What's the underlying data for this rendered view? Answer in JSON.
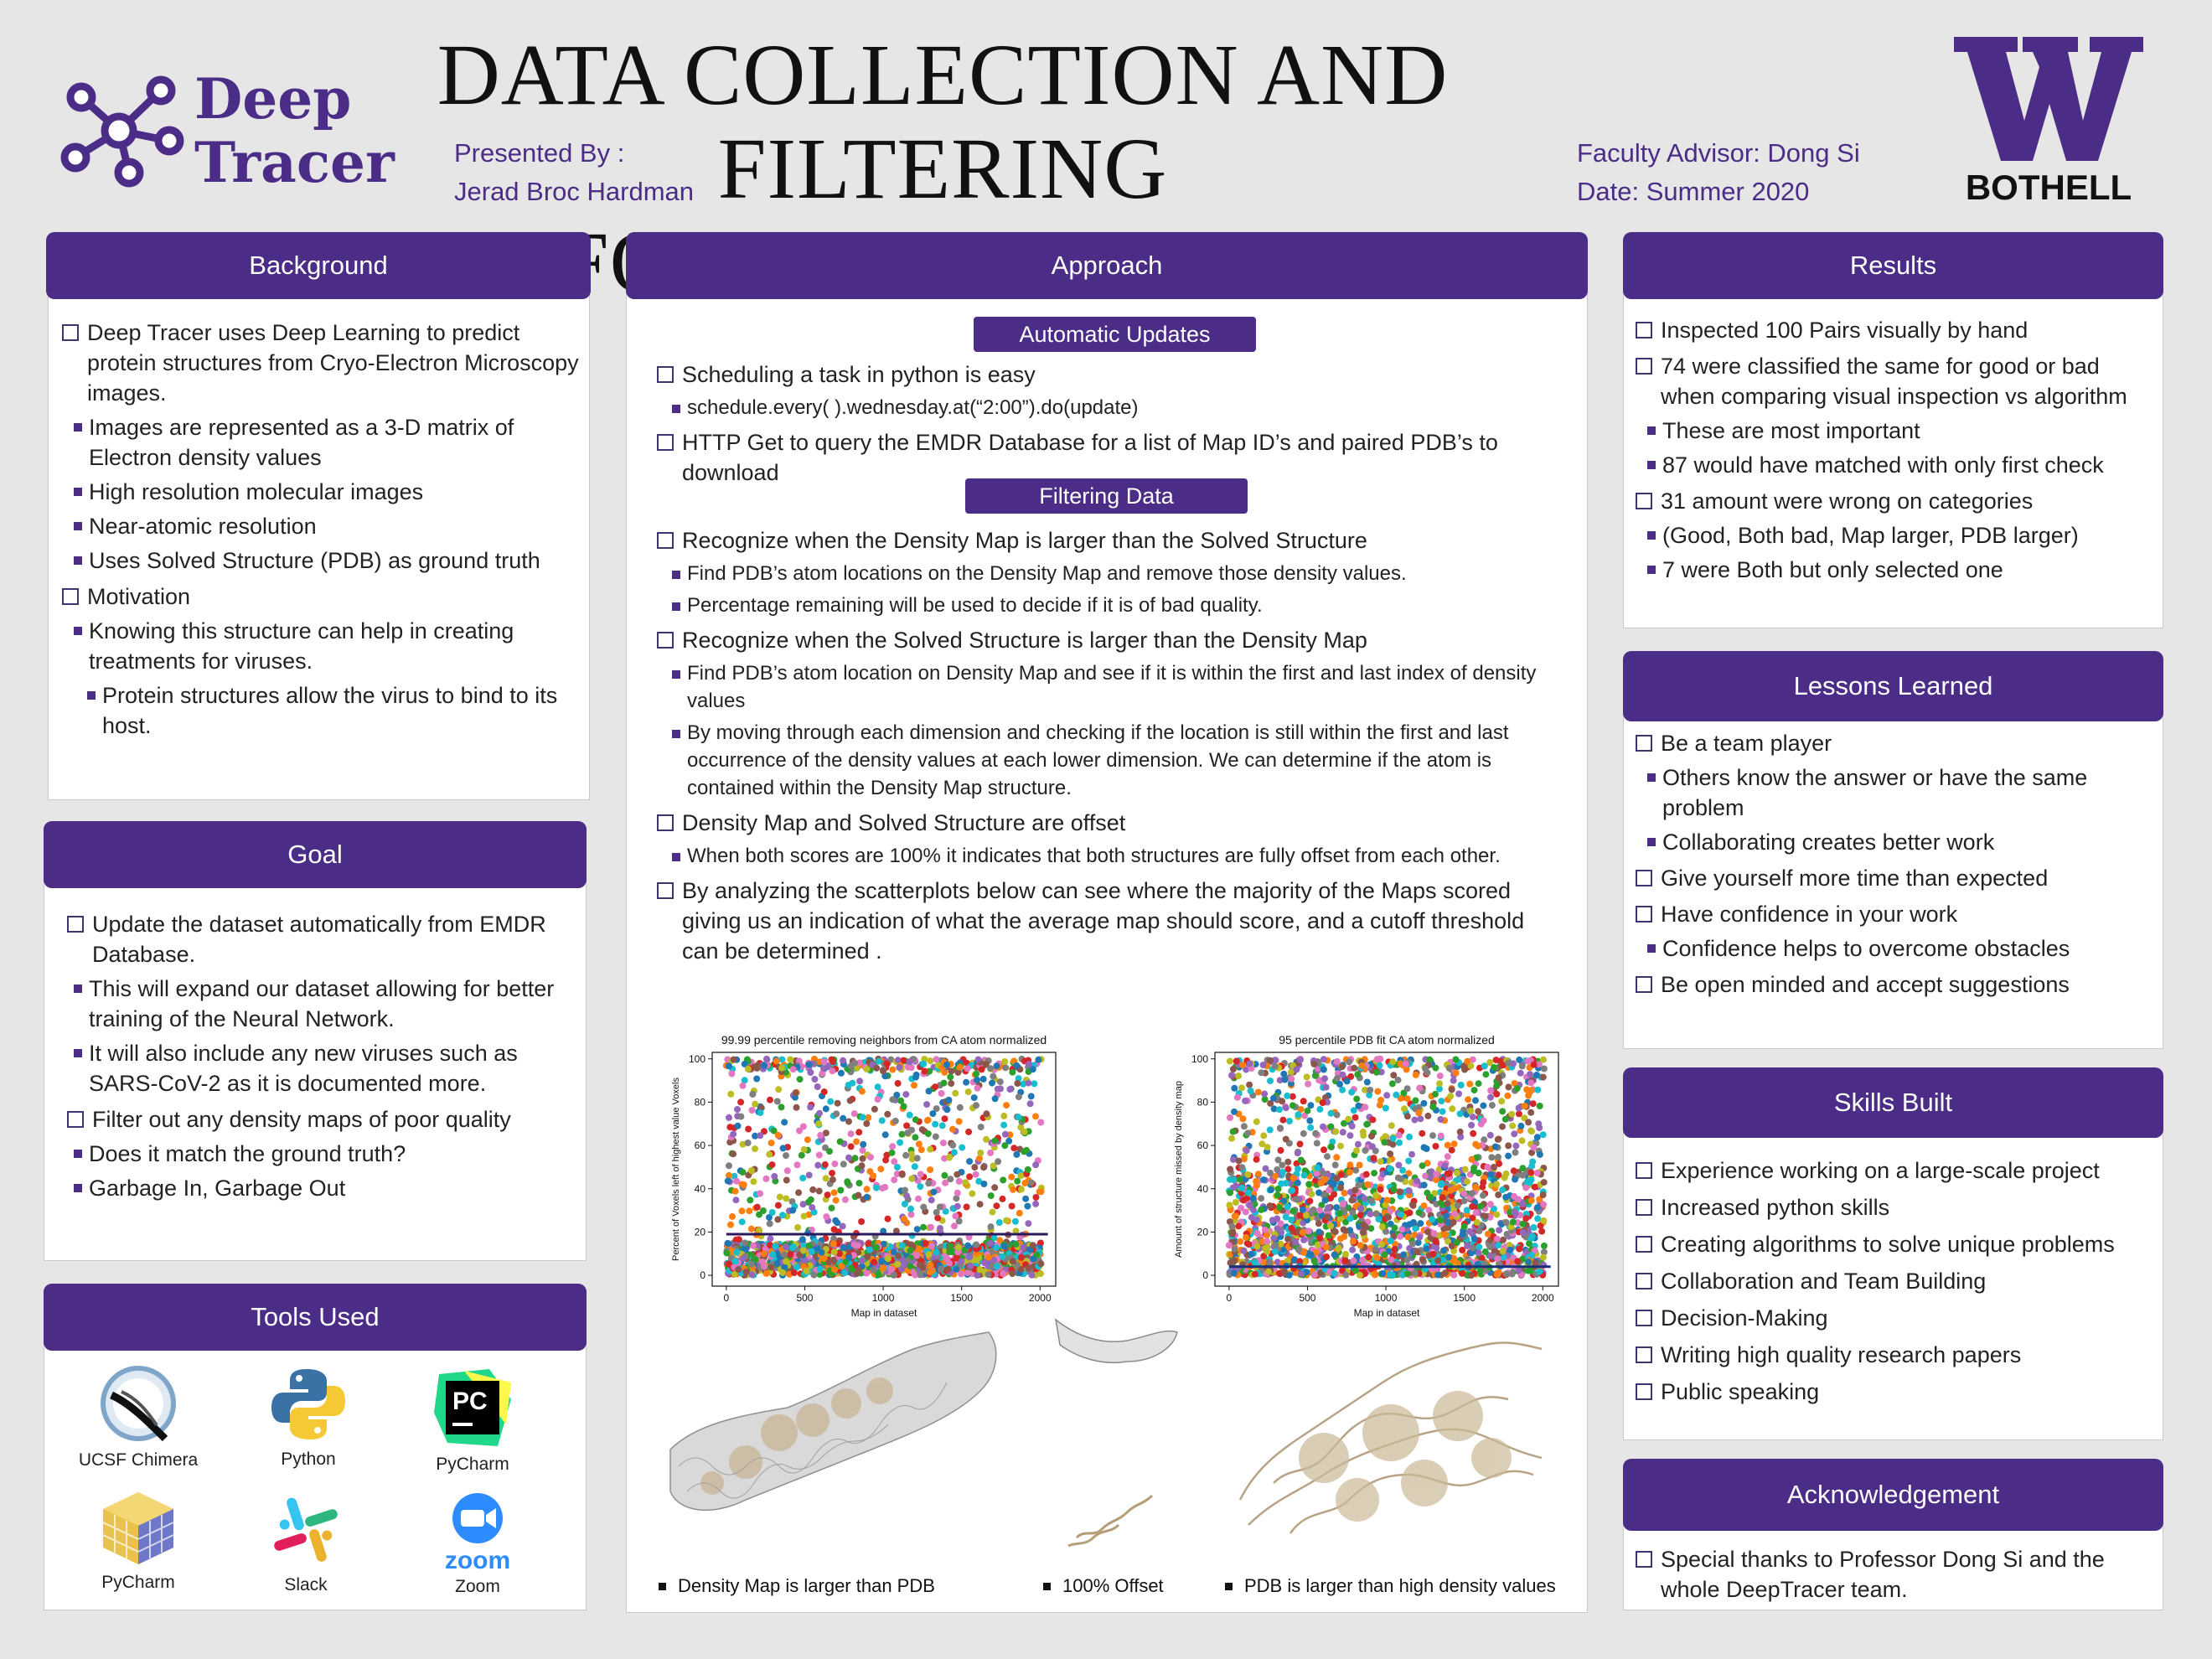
{
  "header": {
    "logo_text_1": "Deep",
    "logo_text_2": "Tracer",
    "presented_label": "Presented By :",
    "presenter": "Jerad Broc Hardman",
    "title_line1": "DATA COLLECTION AND FILTERING",
    "title_line2": "FOR DEEPTRACER",
    "advisor": "Faculty Advisor: Dong Si",
    "date": "Date: Summer 2020",
    "uw_logo": "BOTHELL",
    "colors": {
      "purple": "#4b2c86",
      "background": "#e6e6e7"
    }
  },
  "background": {
    "heading": "Background",
    "items": [
      {
        "level": 1,
        "text": "Deep Tracer uses Deep Learning to predict protein structures from Cryo-Electron Microscopy images."
      },
      {
        "level": 2,
        "text": "Images are represented as a 3-D matrix of Electron density values"
      },
      {
        "level": 2,
        "text": "High resolution molecular images"
      },
      {
        "level": 2,
        "text": "Near-atomic resolution"
      },
      {
        "level": 2,
        "text": "Uses Solved Structure (PDB) as ground truth"
      },
      {
        "level": 1,
        "text": "Motivation"
      },
      {
        "level": 2,
        "text": "Knowing this structure can help in creating treatments for viruses."
      },
      {
        "level": 3,
        "text": "Protein structures allow the virus to bind to its host."
      }
    ]
  },
  "goal": {
    "heading": "Goal",
    "items": [
      {
        "level": 1,
        "text": "Update the dataset automatically from EMDR Database."
      },
      {
        "level": 2,
        "text": "This will expand our dataset allowing for better training of the Neural Network."
      },
      {
        "level": 2,
        "text": "It will also include any new viruses such as SARS-CoV-2 as it is documented more."
      },
      {
        "level": 1,
        "text": "Filter out any density maps of poor quality"
      },
      {
        "level": 2,
        "text": "Does it match the ground truth?"
      },
      {
        "level": 2,
        "text": "Garbage In, Garbage Out"
      }
    ]
  },
  "tools": {
    "heading": "Tools Used",
    "items": [
      {
        "name": "UCSF Chimera",
        "icon": "chimera-icon"
      },
      {
        "name": "Python",
        "icon": "python-icon"
      },
      {
        "name": "PyCharm",
        "icon": "pycharm-icon"
      },
      {
        "name": "PyCharm",
        "icon": "cube-icon"
      },
      {
        "name": "Slack",
        "icon": "slack-icon"
      },
      {
        "name": "Zoom",
        "icon": "zoom-icon"
      }
    ]
  },
  "approach": {
    "heading": "Approach",
    "sub1": "Automatic Updates",
    "auto_items": [
      {
        "level": 1,
        "text": "Scheduling a task in python is easy"
      },
      {
        "level": 2,
        "text": "schedule.every( ).wednesday.at(“2:00”).do(update)"
      },
      {
        "level": 1,
        "text": "HTTP Get to query the EMDR Database for a list of Map ID’s and paired PDB’s to download"
      }
    ],
    "sub2": "Filtering Data",
    "filter_items": [
      {
        "level": 1,
        "text": "Recognize when the Density Map is larger than the Solved Structure"
      },
      {
        "level": 2,
        "text": "Find PDB’s atom locations on the Density Map and remove those density values."
      },
      {
        "level": 2,
        "text": "Percentage remaining will be used to decide if it is of bad quality."
      },
      {
        "level": 1,
        "text": "Recognize when the Solved Structure is larger than the Density Map"
      },
      {
        "level": 2,
        "text": "Find PDB’s atom location on Density Map and see if it is within the first and last index of density values"
      },
      {
        "level": 2,
        "text": "By moving through each dimension and checking if the location is still within the first and last occurrence of the density values at each lower dimension. We can determine if the atom is contained within the Density Map structure."
      },
      {
        "level": 1,
        "text": "Density Map and Solved Structure are offset"
      },
      {
        "level": 2,
        "text": "When both scores are 100% it indicates that both structures are fully offset from each other."
      },
      {
        "level": 1,
        "text": "By analyzing the scatterplots below can see where the majority of the Maps scored giving us an indication of what the average map should score, and a cutoff threshold can be determined ."
      }
    ],
    "captions": [
      "Density Map is larger than PDB",
      "100% Offset",
      "PDB is larger than high density values"
    ]
  },
  "results": {
    "heading": "Results",
    "items": [
      {
        "level": 1,
        "text": "Inspected 100 Pairs visually by hand"
      },
      {
        "level": 1,
        "text": "74 were classified the same for good or bad when comparing visual inspection vs algorithm"
      },
      {
        "level": 2,
        "text": "These are most important"
      },
      {
        "level": 2,
        "text": "87 would have matched with only first check"
      },
      {
        "level": 1,
        "text": "31 amount were wrong on categories"
      },
      {
        "level": 2,
        "text": "(Good, Both bad, Map larger, PDB larger)"
      },
      {
        "level": 2,
        "text": "7 were Both but only selected one"
      }
    ]
  },
  "lessons": {
    "heading": "Lessons Learned",
    "items": [
      {
        "level": 1,
        "text": "Be a team player"
      },
      {
        "level": 2,
        "text": "Others know the answer or have the same problem"
      },
      {
        "level": 2,
        "text": "Collaborating creates better work"
      },
      {
        "level": 1,
        "text": "Give yourself more time than expected"
      },
      {
        "level": 1,
        "text": "Have confidence in your work"
      },
      {
        "level": 2,
        "text": "Confidence helps to overcome obstacles"
      },
      {
        "level": 1,
        "text": "Be open minded and accept suggestions"
      }
    ]
  },
  "skills": {
    "heading": "Skills Built",
    "items": [
      {
        "level": 1,
        "text": "Experience working on a large-scale project"
      },
      {
        "level": 1,
        "text": "Increased python skills"
      },
      {
        "level": 1,
        "text": "Creating algorithms to solve unique problems"
      },
      {
        "level": 1,
        "text": "Collaboration and Team Building"
      },
      {
        "level": 1,
        "text": "Decision-Making"
      },
      {
        "level": 1,
        "text": "Writing high quality research papers"
      },
      {
        "level": 1,
        "text": "Public speaking"
      }
    ]
  },
  "ack": {
    "heading": "Acknowledgement",
    "items": [
      {
        "level": 1,
        "text": "Special thanks to Professor Dong Si and the whole DeepTracer team."
      }
    ]
  },
  "chart_data": [
    {
      "type": "scatter",
      "title": "99.99 percentile removing neighbors from CA atom normalized",
      "xlabel": "Map in dataset",
      "ylabel": "Percent of Voxels left of highest value Voxels",
      "xlim": [
        -90,
        2100
      ],
      "ylim": [
        -5,
        103
      ],
      "xticks": [
        0,
        500,
        1000,
        1500,
        2000
      ],
      "yticks": [
        0,
        20,
        40,
        60,
        80,
        100
      ],
      "n_points": 2100,
      "distribution": "dense band 0-15, sparse uniform 15-100, cluster near 100",
      "threshold": 19
    },
    {
      "type": "scatter",
      "title": "95 percentile PDB fit CA atom normalized",
      "xlabel": "Map in dataset",
      "ylabel": "Amount of structure missed by density map",
      "xlim": [
        -90,
        2100
      ],
      "ylim": [
        -5,
        103
      ],
      "xticks": [
        0,
        500,
        1000,
        1500,
        2000
      ],
      "yticks": [
        0,
        20,
        40,
        60,
        80,
        100
      ],
      "n_points": 2100,
      "distribution": "dense 0-50 decaying upward, sparse above, cluster near 100",
      "threshold": 4
    }
  ]
}
